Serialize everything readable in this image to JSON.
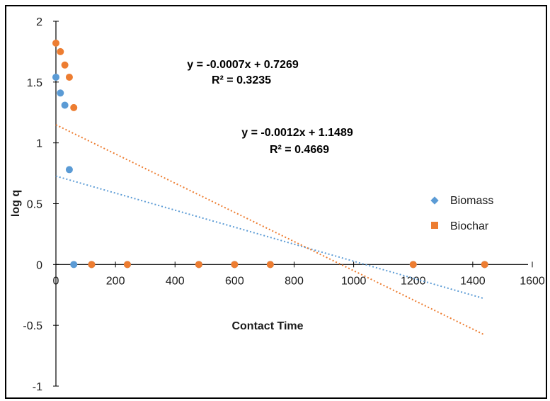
{
  "chart_data": {
    "type": "scatter",
    "title": "",
    "xlabel": "Contact Time",
    "ylabel": "log q",
    "xlim": [
      0,
      1600
    ],
    "ylim": [
      -1,
      2
    ],
    "x_ticks": [
      0,
      200,
      400,
      600,
      800,
      1000,
      1200,
      1400,
      1600
    ],
    "y_ticks": [
      -1,
      -0.5,
      0,
      0.5,
      1,
      1.5,
      2
    ],
    "x_tick_labels": [
      "0",
      "200",
      "400",
      "600",
      "800",
      "1000",
      "1200",
      "1400",
      "1600"
    ],
    "y_tick_labels": [
      "-1",
      "-0.5",
      "0",
      "0.5",
      "1",
      "1.5",
      "2"
    ],
    "grid": false,
    "legend_position": "right",
    "series": [
      {
        "name": "Biomass",
        "color": "#5B9BD5",
        "marker": "diamond",
        "points": [
          [
            0,
            1.54
          ],
          [
            15,
            1.41
          ],
          [
            30,
            1.31
          ],
          [
            45,
            0.78
          ],
          [
            60,
            0
          ],
          [
            120,
            0
          ],
          [
            240,
            0
          ],
          [
            480,
            0
          ],
          [
            600,
            0
          ],
          [
            720,
            0
          ],
          [
            1200,
            0
          ],
          [
            1440,
            0
          ]
        ],
        "trendline": {
          "slope": -0.0007,
          "intercept": 0.7269,
          "x_range": [
            0,
            1440
          ]
        },
        "equation": "y = -0.0007x + 0.7269",
        "r2": "R² = 0.3235"
      },
      {
        "name": "Biochar",
        "color": "#ED7D31",
        "marker": "square",
        "points": [
          [
            0,
            1.82
          ],
          [
            15,
            1.75
          ],
          [
            30,
            1.64
          ],
          [
            45,
            1.54
          ],
          [
            60,
            1.29
          ],
          [
            120,
            0
          ],
          [
            240,
            0
          ],
          [
            480,
            0
          ],
          [
            600,
            0
          ],
          [
            720,
            0
          ],
          [
            1200,
            0
          ],
          [
            1440,
            0
          ]
        ],
        "trendline": {
          "slope": -0.0012,
          "intercept": 1.1489,
          "x_range": [
            0,
            1440
          ]
        },
        "equation": "y = -0.0012x + 1.1489",
        "r2": "R² = 0.4669"
      }
    ]
  }
}
